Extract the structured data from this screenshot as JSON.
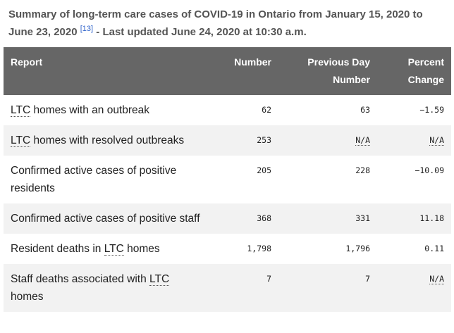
{
  "caption": {
    "text": "Summary of long-term care cases of COVID-19 in Ontario from January 15, 2020 to June 23, 2020",
    "reference": "[13]",
    "updated": " - Last updated June 24, 2020 at 10:30 a.m."
  },
  "table": {
    "headers": [
      "Report",
      "Number",
      "Previous Day Number",
      "Percent Change"
    ],
    "rows": [
      [
        [
          {
            "text": "LTC",
            "abbr": true
          },
          {
            "text": " homes with an outbreak"
          }
        ],
        [
          {
            "text": "62"
          }
        ],
        [
          {
            "text": "63"
          }
        ],
        [
          {
            "text": "−1.59"
          }
        ]
      ],
      [
        [
          {
            "text": "LTC",
            "abbr": true
          },
          {
            "text": " homes with resolved outbreaks"
          }
        ],
        [
          {
            "text": "253"
          }
        ],
        [
          {
            "text": "N/A",
            "abbr": true
          }
        ],
        [
          {
            "text": "N/A",
            "abbr": true
          }
        ]
      ],
      [
        [
          {
            "text": "Confirmed active cases of positive residents"
          }
        ],
        [
          {
            "text": "205"
          }
        ],
        [
          {
            "text": "228"
          }
        ],
        [
          {
            "text": "−10.09"
          }
        ]
      ],
      [
        [
          {
            "text": "Confirmed active cases of positive staff"
          }
        ],
        [
          {
            "text": "368"
          }
        ],
        [
          {
            "text": "331"
          }
        ],
        [
          {
            "text": "11.18"
          }
        ]
      ],
      [
        [
          {
            "text": "Resident deaths in "
          },
          {
            "text": "LTC",
            "abbr": true
          },
          {
            "text": " homes"
          }
        ],
        [
          {
            "text": "1,798"
          }
        ],
        [
          {
            "text": "1,796"
          }
        ],
        [
          {
            "text": "0.11"
          }
        ]
      ],
      [
        [
          {
            "text": "Staff deaths associated with "
          },
          {
            "text": "LTC",
            "abbr": true
          },
          {
            "text": " homes"
          }
        ],
        [
          {
            "text": "7"
          }
        ],
        [
          {
            "text": "7"
          }
        ],
        [
          {
            "text": "N/A",
            "abbr": true
          }
        ]
      ]
    ]
  }
}
